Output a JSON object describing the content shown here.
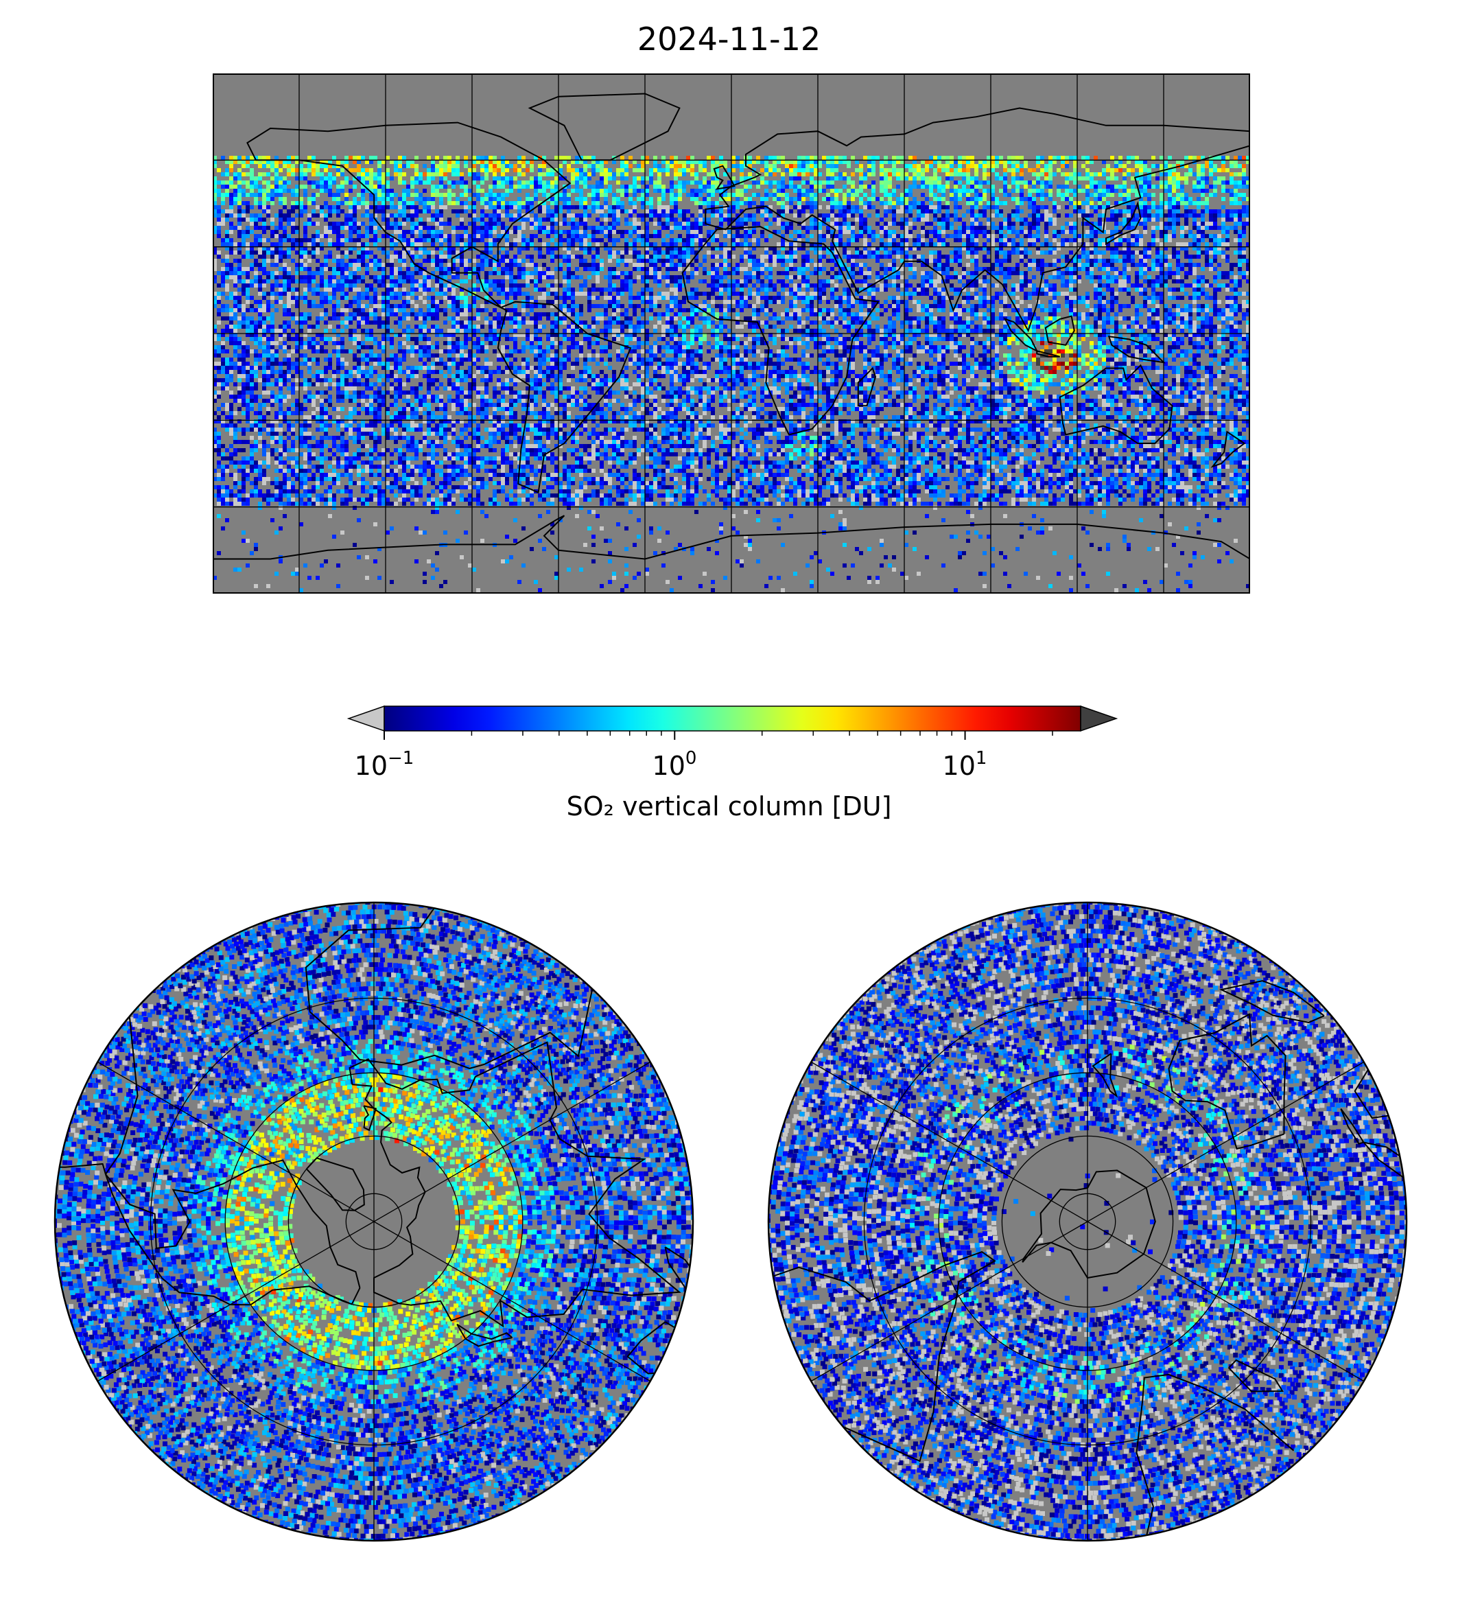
{
  "figure": {
    "title": "2024-11-12",
    "colorbar": {
      "label": "SO₂ vertical column [DU]",
      "scale": "log",
      "range": [
        0.1,
        25
      ],
      "ticks": [
        {
          "base": "10",
          "exponent": "−1",
          "value": 0.1
        },
        {
          "base": "10",
          "exponent": "0",
          "value": 1
        },
        {
          "base": "10",
          "exponent": "1",
          "value": 10
        }
      ],
      "extend": "both",
      "colormap": "jet",
      "under_color": "#c8c8c8",
      "over_color": "#404040"
    },
    "colors": {
      "missing_data": "#808080",
      "coastline": "#000000",
      "gridline": "#000000"
    }
  },
  "maps": [
    {
      "name": "global",
      "projection": "plate-carree",
      "gridlines": {
        "lon_step_deg": 30,
        "lat_step_deg": 30
      }
    },
    {
      "name": "north-polar",
      "projection": "north-polar-stereographic",
      "gridlines": {
        "lon_step_deg": 60,
        "lat_circles_deg": [
          80,
          60,
          40,
          20
        ]
      }
    },
    {
      "name": "south-polar",
      "projection": "south-polar-stereographic",
      "gridlines": {
        "lon_step_deg": 60,
        "lat_circles_deg": [
          -80,
          -60,
          -40,
          -20
        ]
      }
    }
  ]
}
